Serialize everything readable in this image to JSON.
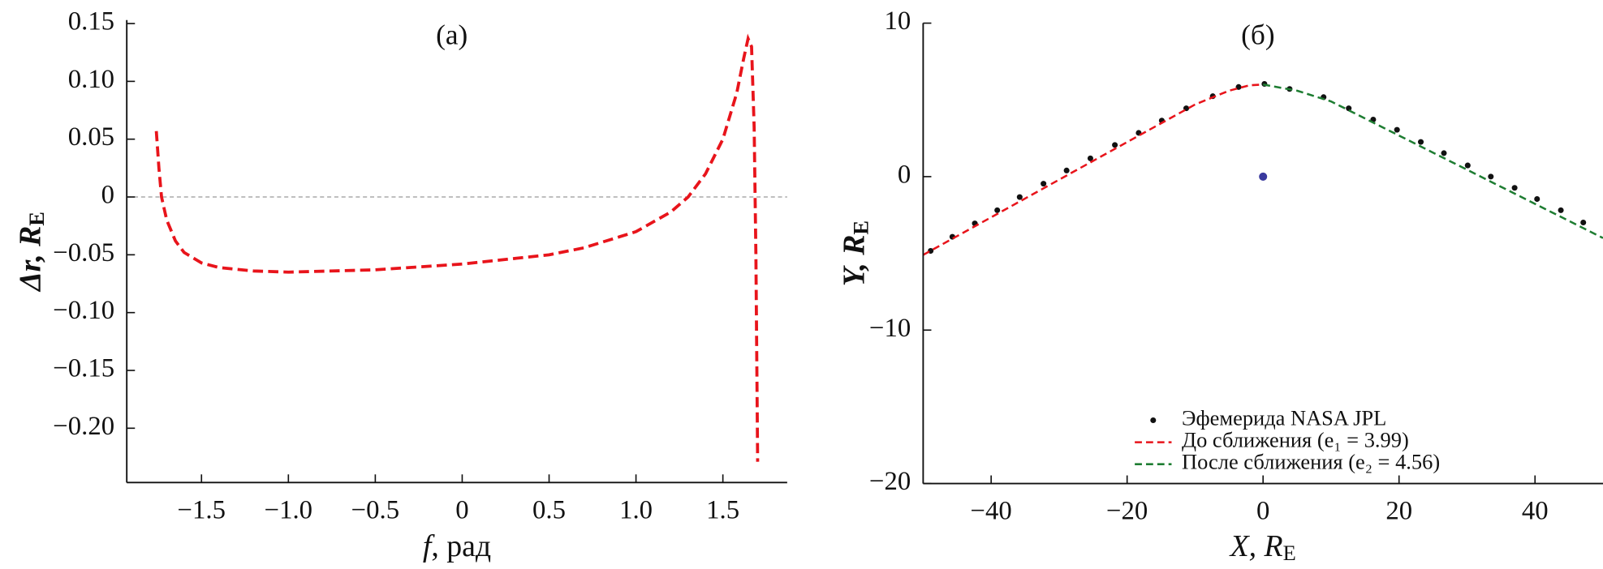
{
  "chart_data": [
    {
      "type": "line",
      "title": "(а)",
      "xlabel": {
        "text": "f",
        "rest": ", рад"
      },
      "ylabel": {
        "text": "Δr, R",
        "sub": "E"
      },
      "xlim": [
        -1.93,
        1.87
      ],
      "ylim": [
        -0.247,
        0.153
      ],
      "xticks": [
        {
          "value": -1.5,
          "label": "−1.5"
        },
        {
          "value": -1.0,
          "label": "−1.0"
        },
        {
          "value": -0.5,
          "label": "−0.5"
        },
        0,
        0.5,
        {
          "value": 1.0,
          "label": "1.0"
        },
        1.5
      ],
      "yticks": [
        0.15,
        {
          "value": 0.1,
          "label": "0.10"
        },
        0.05,
        0,
        {
          "value": -0.05,
          "label": "−0.05"
        },
        {
          "value": -0.1,
          "label": "−0.10"
        },
        {
          "value": -0.15,
          "label": "−0.15"
        },
        {
          "value": -0.2,
          "label": "−0.20"
        }
      ],
      "reference_line": 0,
      "series": [
        {
          "color": "#e8141b",
          "style": "dashed",
          "x": [
            -1.76,
            -1.745,
            -1.73,
            -1.7,
            -1.65,
            -1.6,
            -1.5,
            -1.4,
            -1.2,
            -1.0,
            -0.5,
            0,
            0.5,
            0.7,
            1.0,
            1.2,
            1.3,
            1.4,
            1.5,
            1.58,
            1.62,
            1.645,
            1.665,
            1.68,
            1.69,
            1.7
          ],
          "values": [
            0.057,
            0.025,
            0.0,
            -0.02,
            -0.038,
            -0.048,
            -0.057,
            -0.061,
            -0.064,
            -0.065,
            -0.063,
            -0.058,
            -0.05,
            -0.044,
            -0.03,
            -0.013,
            0.0,
            0.02,
            0.05,
            0.09,
            0.12,
            0.137,
            0.13,
            0.06,
            -0.05,
            -0.229
          ]
        }
      ]
    },
    {
      "type": "line",
      "title": "(б)",
      "xlabel": {
        "text": "X, R",
        "sub": "E"
      },
      "ylabel": {
        "text": "Y, R",
        "sub": "E"
      },
      "xlim": [
        -50,
        50
      ],
      "ylim": [
        -20,
        10
      ],
      "xticks": [
        {
          "value": -40,
          "label": "−40"
        },
        {
          "value": -20,
          "label": "−20"
        },
        0,
        20,
        40
      ],
      "yticks": [
        10,
        0,
        {
          "value": -10,
          "label": "−10"
        },
        {
          "value": -20,
          "label": "−20"
        }
      ],
      "center_point": {
        "x": 0,
        "y": 0,
        "color": "#3a3a9e"
      },
      "legend": "lower right",
      "series": [
        {
          "name": "Эфемерида NASA JPL",
          "color": "#111111",
          "style": "dots",
          "x": [
            -48.9,
            -45.7,
            -42.4,
            -39.1,
            -35.8,
            -32.3,
            -28.9,
            -25.4,
            -21.8,
            -18.3,
            -14.9,
            -11.3,
            -7.4,
            -3.6,
            0.2,
            3.9,
            8.9,
            12.6,
            16.2,
            19.7,
            23.2,
            26.6,
            30.1,
            33.5,
            37.0,
            40.3,
            43.8,
            47.1
          ],
          "values": [
            -4.84,
            -3.92,
            -3.05,
            -2.19,
            -1.33,
            -0.46,
            0.4,
            1.19,
            2.06,
            2.85,
            3.65,
            4.45,
            5.24,
            5.84,
            6.04,
            5.71,
            5.18,
            4.45,
            3.72,
            3.05,
            2.26,
            1.53,
            0.73,
            0.0,
            -0.73,
            -1.46,
            -2.19,
            -2.99
          ]
        },
        {
          "name": "До сближения (e₁ = 3.99)",
          "color": "#e8141b",
          "style": "dashed",
          "x": [
            -50,
            -10,
            -5,
            -2,
            0
          ],
          "values": [
            -5.1,
            4.7,
            5.6,
            5.95,
            6.0
          ]
        },
        {
          "name": "После сближения (e₂ = 4.56)",
          "color": "#1e7d32",
          "style": "dashed",
          "x": [
            0,
            5,
            10,
            50
          ],
          "values": [
            6.0,
            5.6,
            4.9,
            -4.0
          ]
        }
      ]
    }
  ]
}
